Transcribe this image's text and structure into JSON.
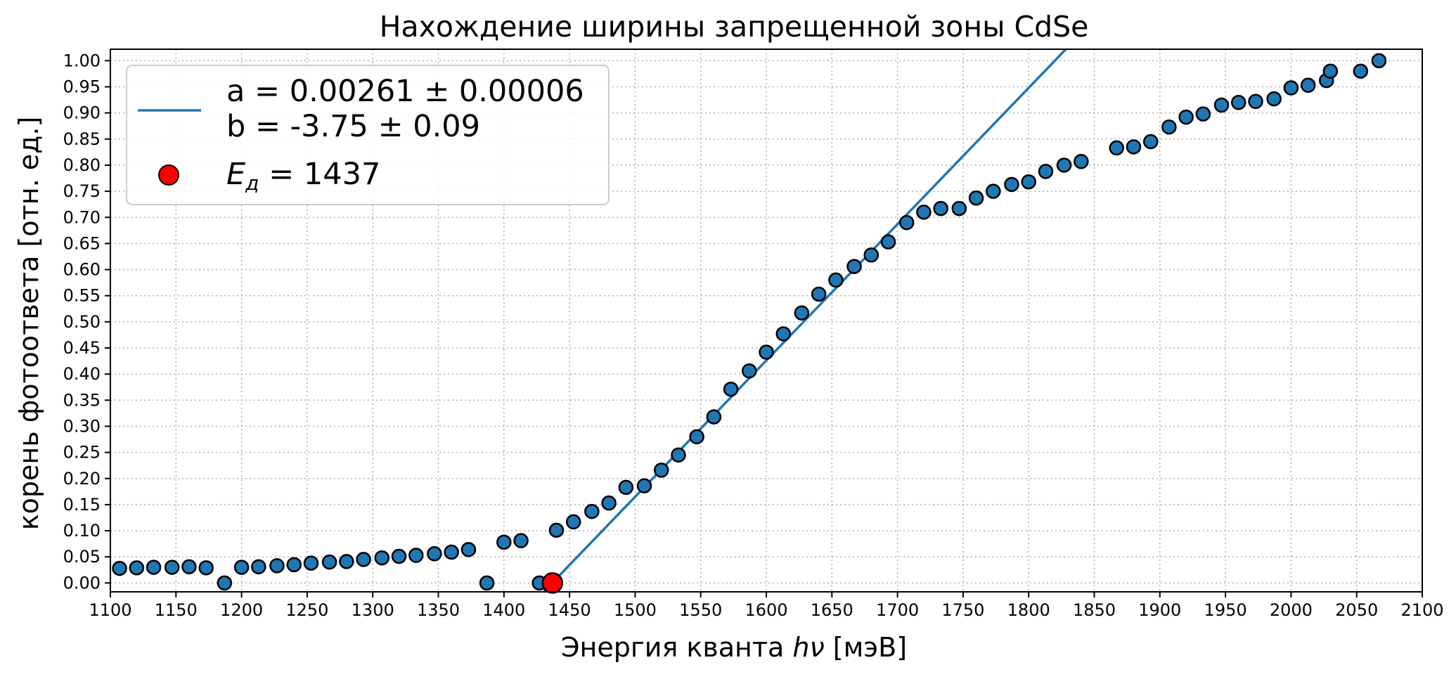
{
  "chart_data": {
    "type": "scatter",
    "title": "Нахождение ширины запрещенной зоны CdSe",
    "xlabel_main": "Энергия кванта ",
    "xlabel_math": "hν",
    "xlabel_unit": " [мэВ]",
    "ylabel": "корень фотоответа [отн. ед.]",
    "xlim": [
      1100,
      2100
    ],
    "ylim": [
      -0.017,
      1.022
    ],
    "xticks": [
      1100,
      1150,
      1200,
      1250,
      1300,
      1350,
      1400,
      1450,
      1500,
      1550,
      1600,
      1650,
      1700,
      1750,
      1800,
      1850,
      1900,
      1950,
      2000,
      2050,
      2100
    ],
    "yticks": [
      "0.00",
      "0.05",
      "0.10",
      "0.15",
      "0.20",
      "0.25",
      "0.30",
      "0.35",
      "0.40",
      "0.45",
      "0.50",
      "0.55",
      "0.60",
      "0.65",
      "0.70",
      "0.75",
      "0.80",
      "0.85",
      "0.90",
      "0.95",
      "1.00"
    ],
    "grid": true,
    "legend_position": "top-left",
    "colors": {
      "points": "#1f77b4",
      "fit_line": "#1f77b4",
      "marker_edge": "#000000",
      "highlight": "#ff0000"
    },
    "fit": {
      "a": 0.00261,
      "b": -3.75,
      "label_a": "a = 0.00261 ± 0.00006",
      "label_b": "b = -3.75 ± 0.09",
      "x_range": [
        1430,
        1830
      ]
    },
    "highlight_point": {
      "x": 1437,
      "y": 0.0,
      "label_symbol": "E",
      "label_sub": "д",
      "label_rest": " = 1437"
    },
    "series": [
      {
        "x": [
          1107,
          1120,
          1133,
          1147,
          1160,
          1173,
          1187,
          1200,
          1213,
          1227,
          1240,
          1253,
          1267,
          1280,
          1293,
          1307,
          1320,
          1333,
          1347,
          1360,
          1373,
          1387,
          1400,
          1413,
          1427,
          1440,
          1453,
          1467,
          1480,
          1493,
          1507,
          1520,
          1533,
          1547,
          1560,
          1573,
          1587,
          1600,
          1613,
          1627,
          1640,
          1653,
          1667,
          1680,
          1693,
          1707,
          1720,
          1733,
          1747,
          1760,
          1773,
          1787,
          1800,
          1813,
          1827,
          1840,
          1867,
          1880,
          1893,
          1907,
          1920,
          1933,
          1947,
          1960,
          1973,
          1987,
          2000,
          2013,
          2027,
          2030,
          2053,
          2067
        ],
        "y": [
          0.028,
          0.029,
          0.03,
          0.03,
          0.031,
          0.029,
          0.0,
          0.03,
          0.031,
          0.033,
          0.035,
          0.038,
          0.04,
          0.041,
          0.045,
          0.048,
          0.051,
          0.053,
          0.056,
          0.059,
          0.064,
          0.0,
          0.078,
          0.081,
          0.0,
          0.101,
          0.117,
          0.137,
          0.153,
          0.183,
          0.186,
          0.216,
          0.245,
          0.28,
          0.318,
          0.371,
          0.406,
          0.442,
          0.477,
          0.517,
          0.553,
          0.58,
          0.606,
          0.628,
          0.653,
          0.69,
          0.71,
          0.717,
          0.717,
          0.737,
          0.75,
          0.763,
          0.768,
          0.788,
          0.8,
          0.807,
          0.833,
          0.835,
          0.845,
          0.873,
          0.892,
          0.898,
          0.915,
          0.92,
          0.922,
          0.927,
          0.948,
          0.953,
          0.962,
          0.98,
          0.98,
          1.0
        ]
      }
    ]
  }
}
